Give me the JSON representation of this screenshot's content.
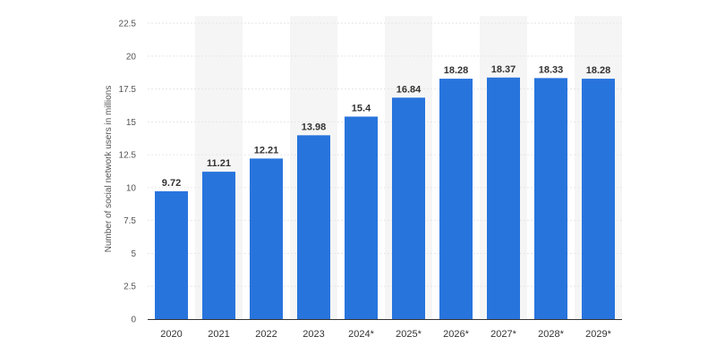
{
  "chart_data": {
    "type": "bar",
    "title": "",
    "xlabel": "",
    "ylabel": "Number of social network users in millions",
    "categories": [
      "2020",
      "2021",
      "2022",
      "2023",
      "2024*",
      "2025*",
      "2026*",
      "2027*",
      "2028*",
      "2029*"
    ],
    "values": [
      9.72,
      11.21,
      12.21,
      13.98,
      15.4,
      16.84,
      18.28,
      18.37,
      18.33,
      18.28
    ],
    "data_labels": [
      "9.72",
      "11.21",
      "12.21",
      "13.98",
      "15.4",
      "16.84",
      "18.28",
      "18.37",
      "18.33",
      "18.28"
    ],
    "y_ticks": [
      0,
      2.5,
      5,
      7.5,
      10,
      12.5,
      15,
      17.5,
      20,
      22.5
    ],
    "y_tick_labels": [
      "0",
      "2.5",
      "5",
      "7.5",
      "10",
      "12.5",
      "15",
      "17.5",
      "20",
      "22.5"
    ],
    "ylim": [
      0,
      22.5
    ],
    "grid": true,
    "colors": {
      "bar": "#2874dd",
      "band": "#f5f5f5",
      "gridline": "#e6e6e6",
      "axis": "#333333"
    }
  }
}
